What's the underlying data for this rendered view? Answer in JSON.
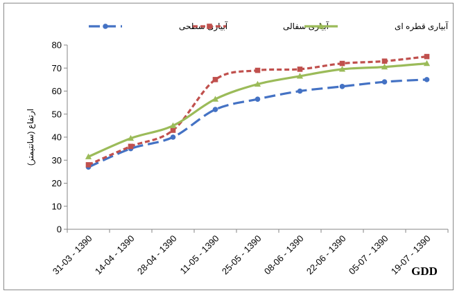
{
  "chart_data": {
    "type": "line",
    "title": "",
    "xlabel": "GDD",
    "ylabel": "ارتفاع (سانتیمتر)",
    "ylim": [
      0,
      80
    ],
    "yticks": [
      0,
      10,
      20,
      30,
      40,
      50,
      60,
      70,
      80
    ],
    "grid": false,
    "legend_position": "top",
    "categories": [
      "31-03 - 1390",
      "14-04 - 1390",
      "28-04 - 1390",
      "11-05 - 1390",
      "25-05 - 1390",
      "08-06 - 1390",
      "22-06 - 1390",
      "05-07 - 1390",
      "19-07 - 1390"
    ],
    "series": [
      {
        "name": "آبیاری سطحی",
        "color": "#4472C4",
        "marker": "circle",
        "dash": "long-dash",
        "values": [
          27,
          35,
          40,
          52,
          56.5,
          60,
          62,
          64,
          65
        ]
      },
      {
        "name": "آبیاری سفالی",
        "color": "#C0504D",
        "marker": "square",
        "dash": "short-dash",
        "values": [
          28,
          36,
          43,
          65,
          69,
          69.5,
          72,
          73,
          75
        ]
      },
      {
        "name": "آبیاری قطره ای",
        "color": "#9BBB59",
        "marker": "triangle",
        "dash": "solid",
        "values": [
          31.5,
          39.5,
          45,
          56.5,
          63,
          66.5,
          69.5,
          70.5,
          72
        ]
      }
    ]
  }
}
